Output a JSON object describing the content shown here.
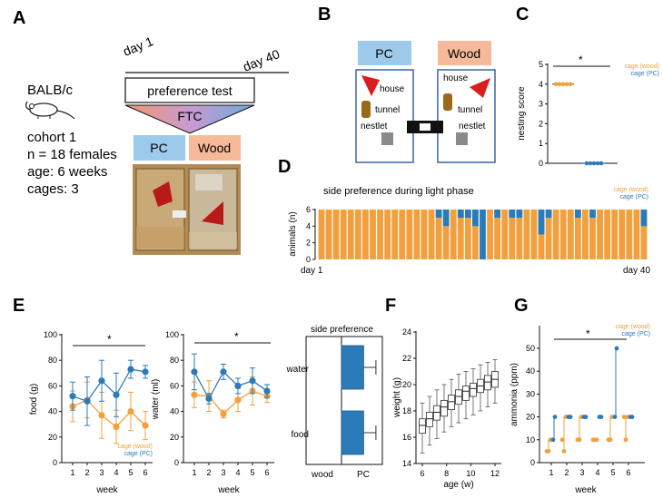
{
  "colors": {
    "orange": "#f2a03d",
    "blue": "#2b7bb9",
    "pc_box": "#9dc9ea",
    "wood_box": "#f6b999",
    "red": "#d81e1e",
    "brown": "#9a6a18",
    "gray": "#8a8a8a"
  },
  "panel_a": {
    "letter": "A",
    "strain": "BALB/c",
    "cohort": "cohort 1",
    "n": "n = 18 females",
    "age": "age: 6 weeks",
    "cages": "cages: 3",
    "day_start": "day 1",
    "day_end": "day 40",
    "preference_test": "preference test",
    "ftc": "FTC",
    "pc": "PC",
    "wood": "Wood"
  },
  "panel_b": {
    "letter": "B",
    "pc": "PC",
    "wood": "Wood",
    "house_l": "house",
    "tunnel_l": "tunnel",
    "nestlet_l": "nestlet",
    "house_r": "house",
    "tunnel_r": "tunnel",
    "nestlet_r": "nestlet"
  },
  "panel_c": {
    "letter": "C",
    "ylabel": "nesting score",
    "star": "*",
    "legend_wood": "cage (wood)",
    "legend_pc": "cage (PC)",
    "chart_data": {
      "type": "scatter",
      "ylim": [
        0,
        5
      ],
      "yticks": [
        "0",
        "1",
        "2",
        "3",
        "4",
        "5"
      ],
      "series": [
        {
          "name": "cage (wood)",
          "values": [
            4,
            4,
            4,
            4,
            4
          ]
        },
        {
          "name": "cage (PC)",
          "values": [
            0,
            0,
            0,
            0,
            0
          ]
        }
      ]
    }
  },
  "panel_d": {
    "letter": "D",
    "title": "side preference during light phase",
    "ylabel": "animals (n)",
    "day_start": "day 1",
    "day_end": "day 40",
    "legend_wood": "cage (wood)",
    "legend_pc": "cage (PC)",
    "chart_data": {
      "type": "bar",
      "stacked": true,
      "ylim": [
        0,
        6
      ],
      "yticks": [
        "0",
        "2",
        "4",
        "6"
      ],
      "series": [
        {
          "name": "cage (wood)",
          "values": [
            6,
            6,
            6,
            6,
            6,
            6,
            6,
            6,
            6,
            6,
            6,
            6,
            6,
            6,
            6,
            6,
            5,
            4,
            6,
            5,
            5,
            4,
            0,
            6,
            5,
            6,
            5,
            5,
            6,
            6,
            3,
            5,
            6,
            6,
            6,
            5,
            6,
            5,
            6,
            6,
            6,
            6,
            6,
            6,
            4
          ]
        },
        {
          "name": "cage (PC)",
          "values": [
            0,
            0,
            0,
            0,
            0,
            0,
            0,
            0,
            0,
            0,
            0,
            0,
            0,
            0,
            0,
            0,
            1,
            2,
            0,
            1,
            1,
            2,
            6,
            0,
            1,
            0,
            1,
            1,
            0,
            0,
            3,
            1,
            0,
            0,
            0,
            1,
            0,
            1,
            0,
            0,
            0,
            0,
            0,
            0,
            2
          ]
        }
      ]
    }
  },
  "panel_e": {
    "letter": "E",
    "food": {
      "ylabel": "food (g)",
      "xlabel": "week",
      "star": "*",
      "legend_wood": "cage (wood)",
      "legend_pc": "cage (PC)",
      "chart_data": {
        "type": "line",
        "x": [
          1,
          2,
          3,
          4,
          5,
          6
        ],
        "ylim": [
          0,
          100
        ],
        "yticks": [
          "0",
          "20",
          "40",
          "60",
          "80",
          "100"
        ],
        "xticks": [
          "1",
          "2",
          "3",
          "4",
          "5",
          "6"
        ],
        "series": [
          {
            "name": "cage (wood)",
            "values": [
              44,
              49,
              37,
              28,
              40,
              29
            ],
            "err": [
              12,
              14,
              18,
              13,
              15,
              11
            ]
          },
          {
            "name": "cage (PC)",
            "values": [
              52,
              48,
              64,
              53,
              73,
              71
            ],
            "err": [
              11,
              19,
              16,
              17,
              7,
              5
            ]
          }
        ]
      }
    },
    "water": {
      "ylabel": "water (ml)",
      "xlabel": "week",
      "star": "*",
      "legend_wood": "cage (wood)",
      "legend_pc": "cage (PC)",
      "chart_data": {
        "type": "line",
        "x": [
          1,
          2,
          3,
          4,
          5,
          6
        ],
        "ylim": [
          0,
          100
        ],
        "yticks": [
          "0",
          "20",
          "40",
          "60",
          "80",
          "100"
        ],
        "xticks": [
          "1",
          "2",
          "3",
          "4",
          "5",
          "6"
        ],
        "series": [
          {
            "name": "cage (wood)",
            "values": [
              53,
              52,
              38,
              49,
              56,
              52
            ],
            "err": [
              10,
              12,
              3,
              9,
              11,
              5
            ]
          },
          {
            "name": "cage (PC)",
            "values": [
              71,
              50,
              71,
              60,
              64,
              56
            ],
            "err": [
              14,
              4,
              6,
              6,
              10,
              5
            ]
          }
        ]
      }
    },
    "pref": {
      "title": "side preference",
      "water": "water",
      "food": "food",
      "wood": "wood",
      "pc": "PC",
      "chart_data": {
        "type": "bar",
        "orientation": "horizontal",
        "categories": [
          "water",
          "food"
        ],
        "values": [
          0.72,
          0.72
        ],
        "err": [
          0.45,
          0.45
        ],
        "xlabels": [
          "wood",
          "PC"
        ]
      }
    }
  },
  "panel_f": {
    "letter": "F",
    "ylabel": "weight (g)",
    "xlabel": "age (w)",
    "chart_data": {
      "type": "box",
      "x": [
        6,
        6.6,
        7.2,
        7.8,
        8.4,
        9,
        9.6,
        10.2,
        10.8,
        11.4,
        12
      ],
      "ylim": [
        14,
        24
      ],
      "yticks": [
        "14",
        "16",
        "18",
        "20",
        "22",
        "24"
      ],
      "xticks": [
        "6",
        "8",
        "10",
        "12"
      ],
      "median": [
        16.9,
        17.4,
        17.9,
        18.3,
        18.7,
        19.1,
        19.5,
        19.7,
        19.9,
        20.2,
        20.4
      ],
      "q1": [
        16.3,
        16.8,
        17.3,
        17.6,
        18.1,
        18.5,
        18.8,
        19.1,
        19.4,
        19.6,
        19.8
      ],
      "q3": [
        17.4,
        17.9,
        18.4,
        18.8,
        19.2,
        19.6,
        19.9,
        20.1,
        20.4,
        20.7,
        21.0
      ],
      "low": [
        14.8,
        15.4,
        15.9,
        16.4,
        16.8,
        17.1,
        17.4,
        17.7,
        18.0,
        18.3,
        18.6
      ],
      "high": [
        18.6,
        19.1,
        19.6,
        20.0,
        20.4,
        20.8,
        21.0,
        21.2,
        21.5,
        21.7,
        21.9
      ]
    }
  },
  "panel_g": {
    "letter": "G",
    "ylabel": "ammonia (ppm)",
    "xlabel": "week",
    "star": "*",
    "legend_wood": "cage (wood)",
    "legend_pc": "cage (PC)",
    "chart_data": {
      "type": "scatter",
      "x": [
        1,
        2,
        3,
        4,
        5,
        6
      ],
      "ylim": [
        0,
        60
      ],
      "yticks": [
        "0",
        "10",
        "20",
        "30",
        "40",
        "50"
      ],
      "xticks": [
        "1",
        "2",
        "3",
        "4",
        "5",
        "6"
      ],
      "series": [
        {
          "name": "cage (wood)",
          "values": [
            5,
            10,
            10,
            10,
            10,
            20
          ],
          "range": [
            5,
            20
          ]
        },
        {
          "name": "cage (PC)",
          "values": [
            10,
            20,
            20,
            20,
            20,
            20
          ],
          "range": [
            10,
            50
          ]
        }
      ]
    }
  }
}
